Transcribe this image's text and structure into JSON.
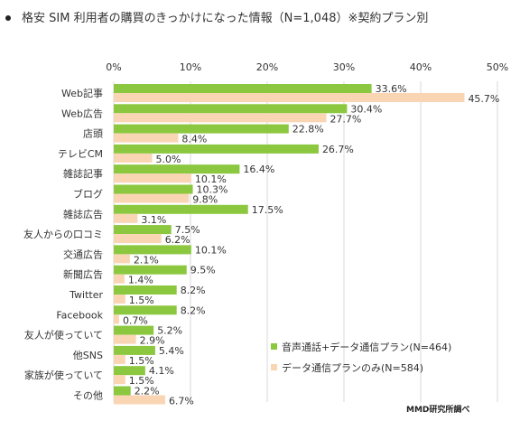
{
  "title": "格安 SIM 利用者の購買のきっかけになった情報（N=1,048）※契約プラン別",
  "source": "MMD研究所調べ",
  "colors": {
    "series_voice": "#8bc83f",
    "series_data": "#fad5b3",
    "gridline": "#d9d9d9",
    "text": "#333333"
  },
  "chart_data": {
    "type": "bar",
    "orientation": "horizontal",
    "title": "格安 SIM 利用者の購買のきっかけになった情報（N=1,048）※契約プラン別",
    "xlim": [
      0,
      50
    ],
    "x_ticks": [
      "0%",
      "10%",
      "20%",
      "30%",
      "40%",
      "50%"
    ],
    "grid": true,
    "legend_position": "bottom-right",
    "categories": [
      "Web記事",
      "Web広告",
      "店頭",
      "テレビCM",
      "雑誌記事",
      "ブログ",
      "雑誌広告",
      "友人からの口コミ",
      "交通広告",
      "新聞広告",
      "Twitter",
      "Facebook",
      "友人が使っていて",
      "他SNS",
      "家族が使っていて",
      "その他"
    ],
    "series": [
      {
        "name": "音声通話+データ通信プラン(N=464)",
        "values": [
          33.6,
          30.4,
          22.8,
          26.7,
          16.4,
          10.3,
          17.5,
          7.5,
          10.1,
          9.5,
          8.2,
          8.2,
          5.2,
          5.4,
          4.1,
          2.2
        ],
        "labels": [
          "33.6%",
          "30.4%",
          "22.8%",
          "26.7%",
          "16.4%",
          "10.3%",
          "17.5%",
          "7.5%",
          "10.1%",
          "9.5%",
          "8.2%",
          "8.2%",
          "5.2%",
          "5.4%",
          "4.1%",
          "2.2%"
        ]
      },
      {
        "name": "データ通信プランのみ(N=584)",
        "values": [
          45.7,
          27.7,
          8.4,
          5.0,
          10.1,
          9.8,
          3.1,
          6.2,
          2.1,
          1.4,
          1.5,
          0.7,
          2.9,
          1.5,
          1.5,
          6.7
        ],
        "labels": [
          "45.7%",
          "27.7%",
          "8.4%",
          "5.0%",
          "10.1%",
          "9.8%",
          "3.1%",
          "6.2%",
          "2.1%",
          "1.4%",
          "1.5%",
          "0.7%",
          "2.9%",
          "1.5%",
          "1.5%",
          "6.7%"
        ]
      }
    ]
  }
}
